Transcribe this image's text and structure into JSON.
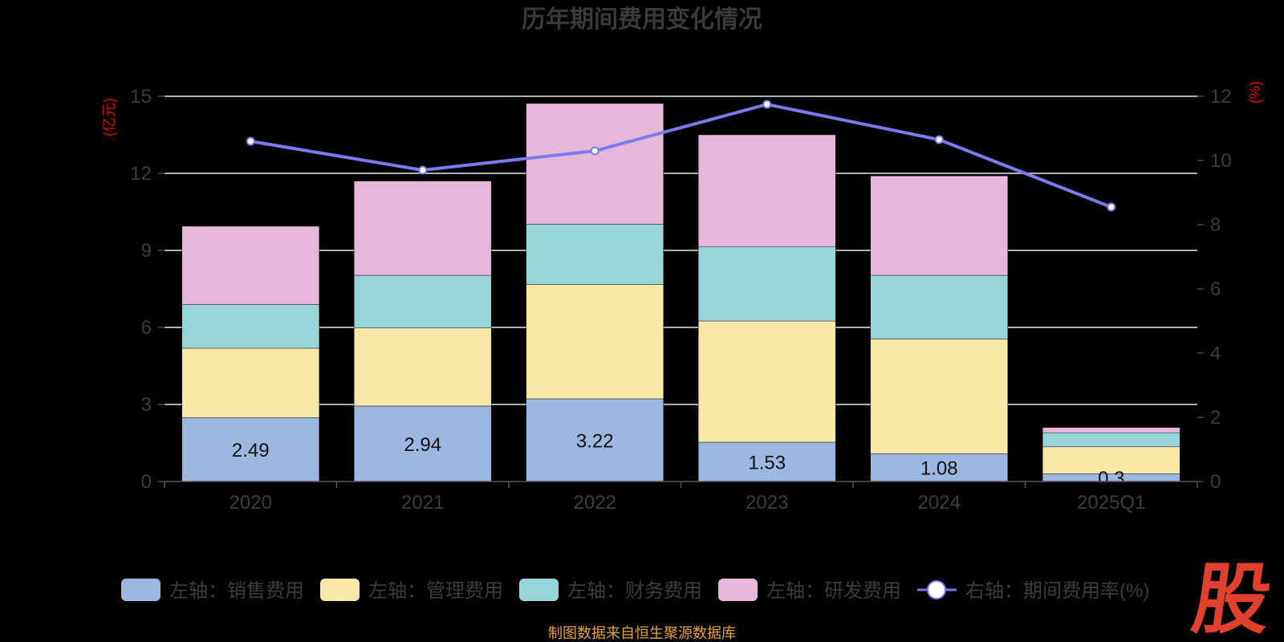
{
  "chart_data": {
    "type": "bar",
    "title": "历年期间费用变化情况",
    "categories": [
      "2020",
      "2021",
      "2022",
      "2023",
      "2024",
      "2025Q1"
    ],
    "stacked": true,
    "series": [
      {
        "name": "左轴：销售费用",
        "axis": "left",
        "color": "#9bb7e2",
        "values": [
          2.49,
          2.94,
          3.22,
          1.53,
          1.08,
          0.3
        ],
        "labels": [
          "2.49",
          "2.94",
          "3.22",
          "1.53",
          "1.08",
          "0.3"
        ]
      },
      {
        "name": "左轴：管理费用",
        "axis": "left",
        "color": "#fae8a8",
        "values": [
          2.7,
          3.04,
          4.45,
          4.72,
          4.47,
          1.05
        ]
      },
      {
        "name": "左轴：财务费用",
        "axis": "left",
        "color": "#97d5d6",
        "values": [
          1.7,
          2.05,
          2.35,
          2.9,
          2.48,
          0.55
        ]
      },
      {
        "name": "左轴：研发费用",
        "axis": "left",
        "color": "#e7b7d9",
        "values": [
          3.05,
          3.67,
          4.7,
          4.35,
          3.87,
          0.2
        ]
      }
    ],
    "line_series": {
      "name": "右轴：期间费用率(%)",
      "axis": "right",
      "color": "#7b7bf0",
      "values": [
        10.6,
        9.7,
        10.3,
        11.75,
        10.65,
        8.55
      ]
    },
    "y_left": {
      "label": "(亿元)",
      "min": 0,
      "max": 15,
      "ticks": [
        "0",
        "3",
        "6",
        "9",
        "12",
        "15"
      ]
    },
    "y_right": {
      "label": "(%)",
      "min": 0,
      "max": 12,
      "ticks": [
        "0",
        "2",
        "4",
        "6",
        "8",
        "10",
        "12"
      ]
    },
    "grid": true,
    "legend_position": "bottom"
  },
  "source_text": "制图数据来自恒生聚源数据库",
  "logo_text": "股"
}
